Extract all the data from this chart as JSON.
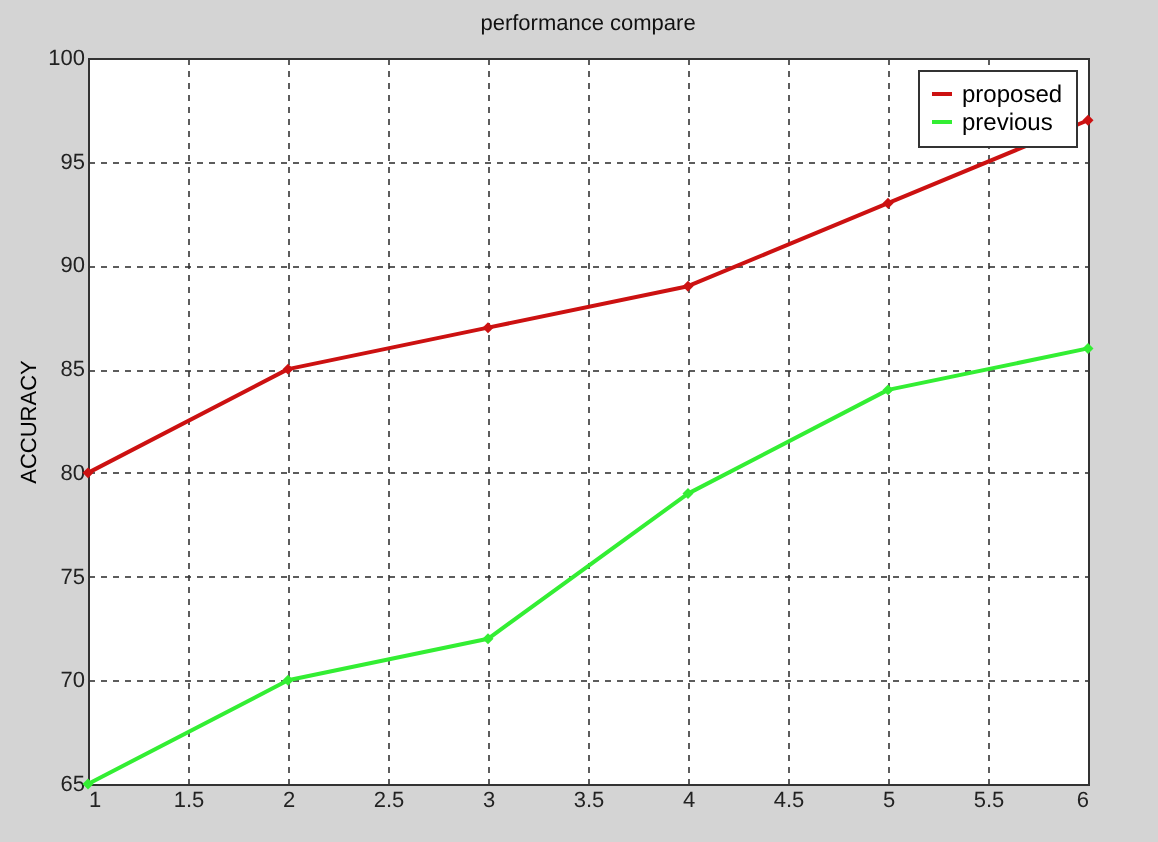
{
  "chart_data": {
    "type": "line",
    "title": "performance compare",
    "ylabel": "ACCURACY",
    "x": [
      1,
      2,
      3,
      4,
      5,
      6
    ],
    "series": [
      {
        "name": "proposed",
        "color": "#cc1111",
        "values": [
          80,
          85,
          87,
          89,
          93,
          97
        ]
      },
      {
        "name": "previous",
        "color": "#33ee33",
        "values": [
          65,
          70,
          72,
          79,
          84,
          86
        ]
      }
    ],
    "xlim": [
      1,
      6
    ],
    "xticks": [
      1,
      1.5,
      2,
      2.5,
      3,
      3.5,
      4,
      4.5,
      5,
      5.5,
      6
    ],
    "ylim": [
      65,
      100
    ],
    "yticks": [
      65,
      70,
      75,
      80,
      85,
      90,
      95,
      100
    ],
    "grid": true,
    "legend": "top right",
    "marker": "diamond",
    "line_style": "solid"
  }
}
